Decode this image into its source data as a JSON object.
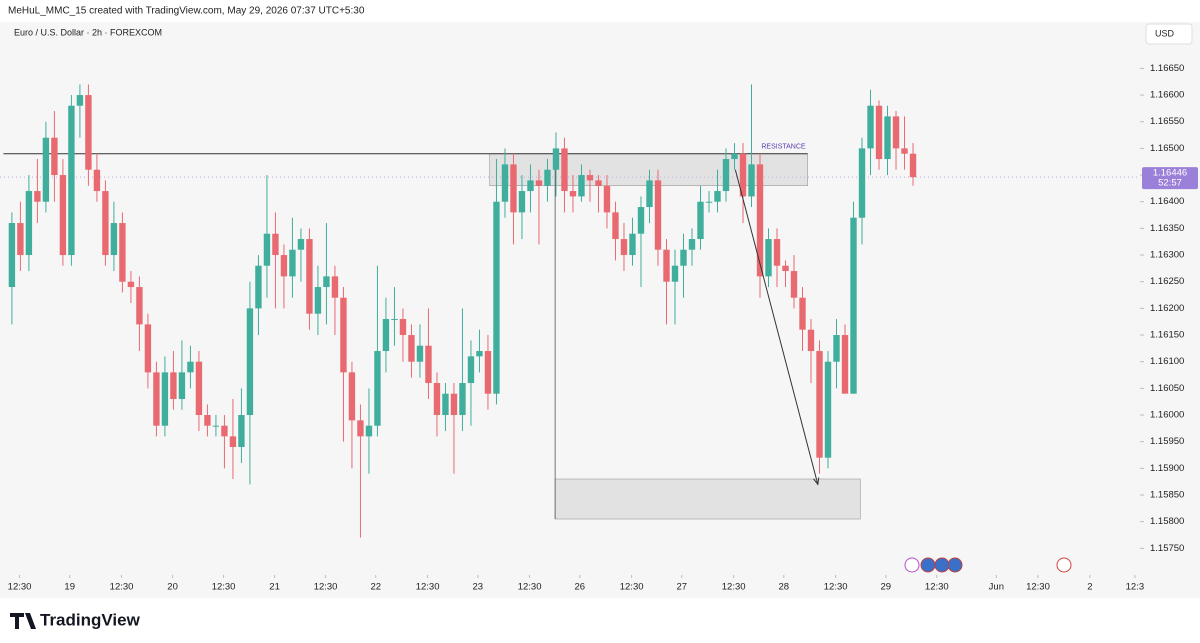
{
  "chart_data": {
    "type": "candlestick",
    "header": "MeHuL_MMC_15 created with TradingView.com, May 29, 2026 07:37 UTC+5:30",
    "title": "Euro / U.S. Dollar · 2h · FOREXCOM",
    "currency": "USD",
    "brand": "TradingView",
    "up_color": "#3fae9c",
    "down_color": "#e86a70",
    "x": [
      0,
      1,
      2,
      3,
      4,
      5,
      6,
      7,
      8,
      9,
      10,
      11,
      12,
      13,
      14,
      15,
      16,
      17,
      18,
      19,
      20,
      21,
      22,
      23,
      24,
      25,
      26,
      27,
      28,
      29,
      30,
      31,
      32,
      33,
      34,
      35,
      36,
      37,
      38,
      39,
      40,
      41,
      42,
      43,
      44,
      45,
      46,
      47,
      48,
      49,
      50,
      51,
      52,
      53,
      54,
      55,
      56,
      57,
      58,
      59,
      60,
      61,
      62,
      63,
      64,
      65,
      66,
      67,
      68,
      69,
      70,
      71,
      72,
      73,
      74,
      75,
      76,
      77,
      78,
      79,
      80,
      81,
      82,
      83,
      84,
      85,
      86,
      87,
      88,
      89,
      90,
      91,
      92,
      93,
      94,
      95,
      96,
      97,
      98,
      99,
      100,
      101,
      102,
      103,
      104,
      105,
      106
    ],
    "open": [
      1.1624,
      1.1636,
      1.163,
      1.1642,
      1.164,
      1.1652,
      1.1645,
      1.163,
      1.1658,
      1.166,
      1.1646,
      1.1642,
      1.163,
      1.1636,
      1.1625,
      1.1624,
      1.1617,
      1.1608,
      1.1598,
      1.1608,
      1.1603,
      1.1608,
      1.161,
      1.16,
      1.1598,
      1.1598,
      1.1596,
      1.1594,
      1.16,
      1.162,
      1.1628,
      1.1634,
      1.163,
      1.1626,
      1.1631,
      1.1633,
      1.1619,
      1.1624,
      1.1626,
      1.1622,
      1.1608,
      1.1599,
      1.1596,
      1.1598,
      1.1612,
      1.1618,
      1.1618,
      1.1615,
      1.161,
      1.1613,
      1.1606,
      1.16,
      1.1604,
      1.16,
      1.1606,
      1.1611,
      1.1612,
      1.1604,
      1.164,
      1.1647,
      1.1638,
      1.1642,
      1.1644,
      1.1643,
      1.1646,
      1.165,
      1.1642,
      1.1641,
      1.1645,
      1.1644,
      1.1643,
      1.1638,
      1.1633,
      1.163,
      1.1634,
      1.1639,
      1.1644,
      1.1631,
      1.1625,
      1.1628,
      1.1631,
      1.1633,
      1.164,
      1.164,
      1.1642,
      1.1648,
      1.1649,
      1.1641,
      1.1647,
      1.1626,
      1.1633,
      1.1628,
      1.1627,
      1.1622,
      1.1616,
      1.1612,
      1.1592,
      1.161,
      1.1615,
      1.1604,
      1.1637,
      1.165,
      1.1658,
      1.1648,
      1.1656,
      1.165,
      1.1649
    ],
    "high": [
      1.1638,
      1.164,
      1.1645,
      1.1648,
      1.1655,
      1.1657,
      1.1648,
      1.166,
      1.1662,
      1.1662,
      1.1649,
      1.1644,
      1.164,
      1.1638,
      1.1627,
      1.1626,
      1.1619,
      1.161,
      1.1611,
      1.1612,
      1.1614,
      1.1613,
      1.1612,
      1.1602,
      1.16,
      1.16,
      1.1603,
      1.1605,
      1.1625,
      1.163,
      1.1645,
      1.1638,
      1.1632,
      1.1637,
      1.1635,
      1.1635,
      1.1628,
      1.1636,
      1.1628,
      1.1624,
      1.161,
      1.1602,
      1.1605,
      1.1628,
      1.1622,
      1.1624,
      1.162,
      1.1617,
      1.1617,
      1.162,
      1.1608,
      1.1606,
      1.1606,
      1.162,
      1.1614,
      1.1616,
      1.1615,
      1.1648,
      1.165,
      1.1649,
      1.1645,
      1.1647,
      1.1646,
      1.1648,
      1.1653,
      1.1652,
      1.1645,
      1.1647,
      1.1646,
      1.1645,
      1.1645,
      1.164,
      1.1636,
      1.1637,
      1.1641,
      1.1646,
      1.1646,
      1.1633,
      1.1631,
      1.1634,
      1.1635,
      1.1643,
      1.1642,
      1.1646,
      1.165,
      1.1651,
      1.1651,
      1.1662,
      1.1649,
      1.1635,
      1.1635,
      1.1629,
      1.163,
      1.1624,
      1.1618,
      1.1614,
      1.1612,
      1.1618,
      1.1617,
      1.164,
      1.1652,
      1.1661,
      1.1659,
      1.1658,
      1.1657,
      1.1656,
      1.1651
    ],
    "low": [
      1.1617,
      1.1627,
      1.1627,
      1.1636,
      1.1638,
      1.164,
      1.1628,
      1.1628,
      1.1652,
      1.1643,
      1.164,
      1.1628,
      1.1627,
      1.1623,
      1.1621,
      1.1612,
      1.1605,
      1.1596,
      1.1596,
      1.1601,
      1.1601,
      1.1605,
      1.1597,
      1.1596,
      1.1596,
      1.159,
      1.1588,
      1.1591,
      1.1587,
      1.1615,
      1.1622,
      1.162,
      1.162,
      1.1622,
      1.1625,
      1.1616,
      1.1615,
      1.1617,
      1.1615,
      1.1595,
      1.159,
      1.1577,
      1.1589,
      1.1596,
      1.1608,
      1.1613,
      1.161,
      1.1607,
      1.1607,
      1.1603,
      1.1596,
      1.1597,
      1.1589,
      1.1597,
      1.1598,
      1.1608,
      1.1601,
      1.1602,
      1.1637,
      1.1632,
      1.1633,
      1.1638,
      1.1632,
      1.164,
      1.1641,
      1.1638,
      1.1638,
      1.164,
      1.164,
      1.1638,
      1.1635,
      1.1629,
      1.1627,
      1.1628,
      1.1624,
      1.1636,
      1.1628,
      1.1617,
      1.1617,
      1.1622,
      1.1628,
      1.1631,
      1.1638,
      1.1638,
      1.164,
      1.1646,
      1.1636,
      1.1639,
      1.1622,
      1.1624,
      1.1624,
      1.1624,
      1.162,
      1.1612,
      1.1606,
      1.1589,
      1.159,
      1.1605,
      1.1604,
      1.1604,
      1.1632,
      1.1645,
      1.1646,
      1.1645,
      1.1646,
      1.1646,
      1.1643
    ],
    "close": [
      1.1636,
      1.163,
      1.1642,
      1.164,
      1.1652,
      1.1645,
      1.163,
      1.1658,
      1.166,
      1.1646,
      1.1642,
      1.163,
      1.1636,
      1.1625,
      1.1624,
      1.1617,
      1.1608,
      1.1598,
      1.1608,
      1.1603,
      1.1608,
      1.161,
      1.16,
      1.1598,
      1.1598,
      1.1596,
      1.1594,
      1.16,
      1.162,
      1.1628,
      1.1634,
      1.163,
      1.1626,
      1.1631,
      1.1633,
      1.1619,
      1.1624,
      1.1626,
      1.1622,
      1.1608,
      1.1599,
      1.1596,
      1.1598,
      1.1612,
      1.1618,
      1.1618,
      1.1615,
      1.161,
      1.1613,
      1.1606,
      1.16,
      1.1604,
      1.16,
      1.1606,
      1.1611,
      1.1612,
      1.1604,
      1.164,
      1.1647,
      1.1638,
      1.1642,
      1.1644,
      1.1643,
      1.1646,
      1.165,
      1.1642,
      1.1641,
      1.1645,
      1.1644,
      1.1643,
      1.1638,
      1.1633,
      1.163,
      1.1634,
      1.1639,
      1.1644,
      1.1631,
      1.1625,
      1.1628,
      1.1631,
      1.1633,
      1.164,
      1.164,
      1.1642,
      1.1648,
      1.1649,
      1.1641,
      1.1647,
      1.1626,
      1.1633,
      1.1628,
      1.1627,
      1.1622,
      1.1616,
      1.1612,
      1.1592,
      1.161,
      1.1615,
      1.1604,
      1.1637,
      1.165,
      1.1658,
      1.1648,
      1.1656,
      1.165,
      1.1649,
      1.16446
    ],
    "last_price": 1.16446,
    "countdown": "52:57",
    "resistance": {
      "label": "RESISTANCE",
      "value": 1.1649
    },
    "zones": [
      {
        "x": [
          56.2,
          93.6
        ],
        "y": [
          1.1643,
          1.1649
        ]
      },
      {
        "x": [
          63.9,
          99.8
        ],
        "y": [
          1.15805,
          1.1588
        ]
      }
    ],
    "arrow": {
      "from": [
        85.1,
        1.1646
      ],
      "to": [
        94.8,
        1.1587
      ]
    },
    "xlim": [
      -1.4,
      132.7
    ],
    "ylim": [
      1.157,
      1.16737
    ],
    "xticks": [
      {
        "value": 0.9,
        "label": "12:30"
      },
      {
        "value": 6.8,
        "label": "19"
      },
      {
        "value": 12.9,
        "label": "12:30"
      },
      {
        "value": 18.9,
        "label": "20"
      },
      {
        "value": 24.9,
        "label": "12:30"
      },
      {
        "value": 30.9,
        "label": "21"
      },
      {
        "value": 36.9,
        "label": "12:30"
      },
      {
        "value": 42.8,
        "label": "22"
      },
      {
        "value": 48.9,
        "label": "12:30"
      },
      {
        "value": 54.8,
        "label": "23"
      },
      {
        "value": 60.9,
        "label": "12:30"
      },
      {
        "value": 66.8,
        "label": "26"
      },
      {
        "value": 72.9,
        "label": "12:30"
      },
      {
        "value": 78.8,
        "label": "27"
      },
      {
        "value": 84.9,
        "label": "12:30"
      },
      {
        "value": 90.8,
        "label": "28"
      },
      {
        "value": 96.9,
        "label": "12:30"
      },
      {
        "value": 102.8,
        "label": "29"
      },
      {
        "value": 108.8,
        "label": "12:30"
      },
      {
        "value": 115.8,
        "label": "Jun"
      },
      {
        "value": 120.7,
        "label": "12:30"
      },
      {
        "value": 126.8,
        "label": "2"
      },
      {
        "value": 132.1,
        "label": "12:3"
      }
    ],
    "yticks": [
      {
        "value": 1.1575,
        "label": "1.15750"
      },
      {
        "value": 1.158,
        "label": "1.15800"
      },
      {
        "value": 1.1585,
        "label": "1.15850"
      },
      {
        "value": 1.159,
        "label": "1.15900"
      },
      {
        "value": 1.1595,
        "label": "1.15950"
      },
      {
        "value": 1.16,
        "label": "1.16000"
      },
      {
        "value": 1.1605,
        "label": "1.16050"
      },
      {
        "value": 1.161,
        "label": "1.16100"
      },
      {
        "value": 1.1615,
        "label": "1.16150"
      },
      {
        "value": 1.162,
        "label": "1.16200"
      },
      {
        "value": 1.1625,
        "label": "1.16250"
      },
      {
        "value": 1.163,
        "label": "1.16300"
      },
      {
        "value": 1.1635,
        "label": "1.16350"
      },
      {
        "value": 1.164,
        "label": "1.16400"
      },
      {
        "value": 1.1645,
        "label": "1.16450"
      },
      {
        "value": 1.165,
        "label": "1.16500"
      },
      {
        "value": 1.1655,
        "label": "1.16550"
      },
      {
        "value": 1.166,
        "label": "1.16600"
      },
      {
        "value": 1.1665,
        "label": "1.16650"
      }
    ]
  }
}
